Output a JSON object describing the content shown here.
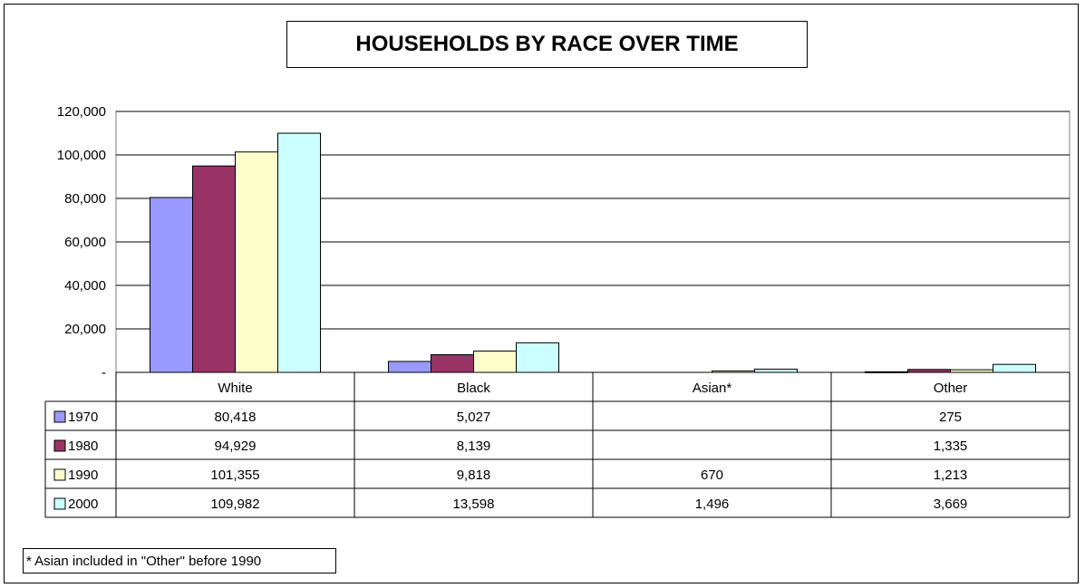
{
  "title": "HOUSEHOLDS BY RACE OVER TIME",
  "note": "* Asian included in \"Other\" before 1990",
  "chart_data": {
    "type": "bar",
    "title": "HOUSEHOLDS BY RACE OVER TIME",
    "categories": [
      "White",
      "Black",
      "Asian*",
      "Other"
    ],
    "series": [
      {
        "name": "1970",
        "color": "#9999ff",
        "values": [
          80418,
          5027,
          null,
          275
        ],
        "labels": [
          "80,418",
          "5,027",
          "",
          "275"
        ]
      },
      {
        "name": "1980",
        "color": "#993366",
        "values": [
          94929,
          8139,
          null,
          1335
        ],
        "labels": [
          "94,929",
          "8,139",
          "",
          "1,335"
        ]
      },
      {
        "name": "1990",
        "color": "#ffffcc",
        "values": [
          101355,
          9818,
          670,
          1213
        ],
        "labels": [
          "101,355",
          "9,818",
          "670",
          "1,213"
        ]
      },
      {
        "name": "2000",
        "color": "#ccffff",
        "values": [
          109982,
          13598,
          1496,
          3669
        ],
        "labels": [
          "109,982",
          "13,598",
          "1,496",
          "3,669"
        ]
      }
    ],
    "yticks": [
      0,
      20000,
      40000,
      60000,
      80000,
      100000,
      120000
    ],
    "ytick_labels": [
      "-",
      "20,000",
      "40,000",
      "60,000",
      "80,000",
      "100,000",
      "120,000"
    ],
    "ylim": [
      0,
      120000
    ],
    "grid": true,
    "legend": "data table"
  }
}
